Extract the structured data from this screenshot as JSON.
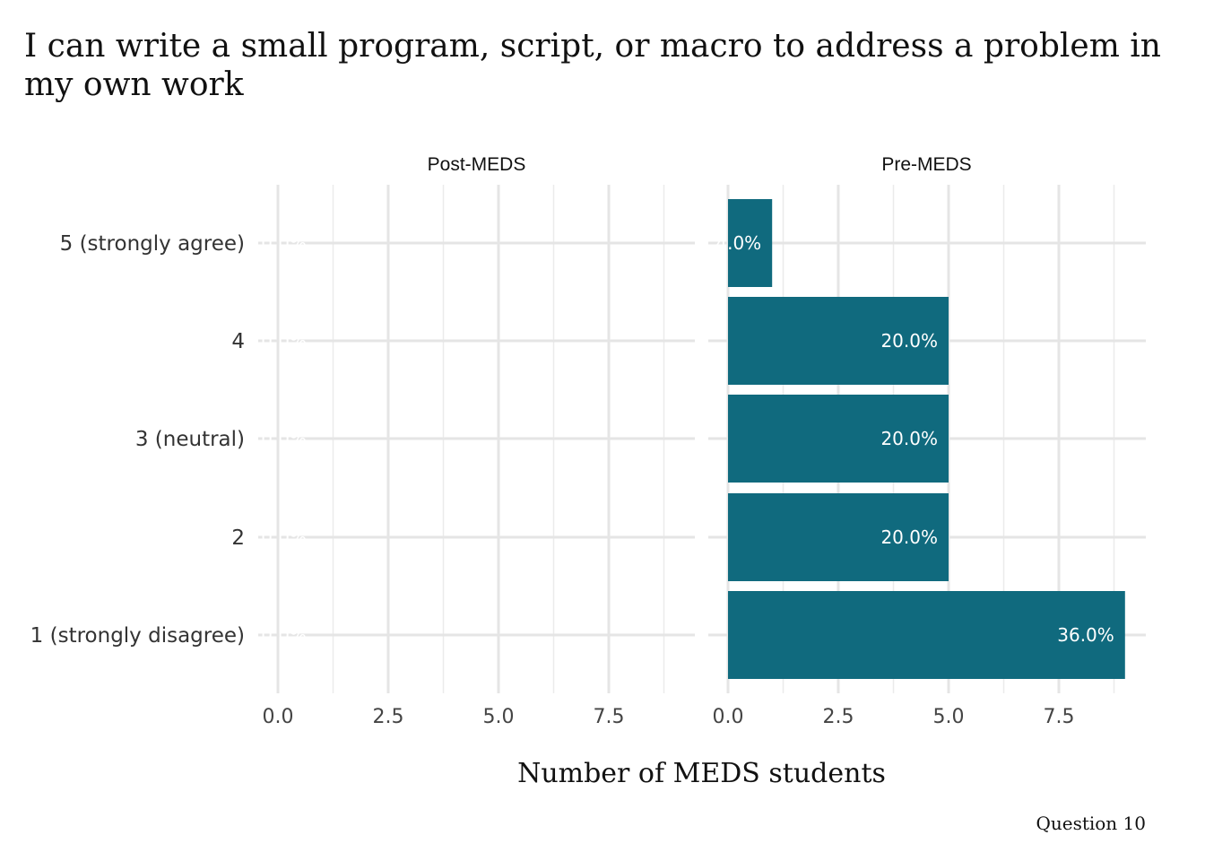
{
  "chart_data": {
    "type": "bar",
    "orientation": "horizontal",
    "title": "I can write a small program, script, or macro to address a problem in my own work",
    "xlabel": "Number of MEDS students",
    "ylabel": "",
    "caption": "Question 10",
    "categories": [
      "1 (strongly disagree)",
      "2",
      "3 (neutral)",
      "4",
      "5 (strongly agree)"
    ],
    "xlim": [
      0,
      9
    ],
    "xticks": [
      "0.0",
      "2.5",
      "5.0",
      "7.5"
    ],
    "xtick_values": [
      0,
      2.5,
      5,
      7.5
    ],
    "bar_color": "#106a7e",
    "grid": true,
    "facets": [
      {
        "name": "Post-MEDS",
        "values": [
          0,
          0,
          0,
          0,
          0
        ],
        "labels": [
          "0.0%",
          "0.0%",
          "0.0%",
          "0.0%",
          "0.0%"
        ]
      },
      {
        "name": "Pre-MEDS",
        "values": [
          9,
          5,
          5,
          5,
          1
        ],
        "labels": [
          "36.0%",
          "20.0%",
          "20.0%",
          "20.0%",
          "4.0%"
        ]
      }
    ]
  }
}
